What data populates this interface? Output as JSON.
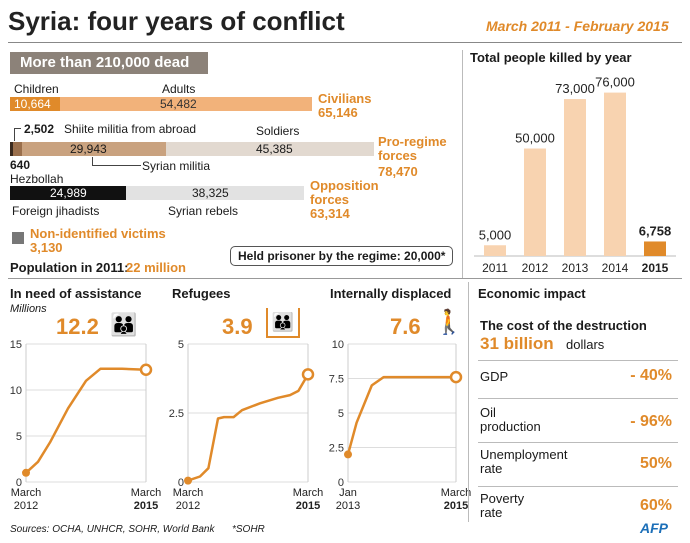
{
  "header": {
    "title": "Syria: four years of conflict",
    "period": "March 2011 - February 2015",
    "dead_banner": "More than 210,000 dead"
  },
  "civilians": {
    "children_label": "Children",
    "children_value": "10,664",
    "adults_label": "Adults",
    "adults_value": "54,482",
    "group_label": "Civilians",
    "group_total": "65,146"
  },
  "proregime": {
    "shiite_value": "2,502",
    "shiite_label": "Shiite militia from abroad",
    "soldiers_label": "Soldiers",
    "hezbollah_value": "640",
    "hezbollah_label": "Hezbollah",
    "militia_value": "29,943",
    "militia_label": "Syrian militia",
    "soldiers_value": "45,385",
    "group_label_1": "Pro-regime",
    "group_label_2": "forces",
    "group_total": "78,470"
  },
  "opposition": {
    "jihadists_value": "24,989",
    "jihadists_label": "Foreign jihadists",
    "rebels_value": "38,325",
    "rebels_label": "Syrian rebels",
    "group_label_1": "Opposition",
    "group_label_2": "forces",
    "group_total": "63,314"
  },
  "unidentified": {
    "label": "Non-identified victims",
    "value": "3,130"
  },
  "population": {
    "label": "Population in 2011:",
    "value": "22 million"
  },
  "prisoners": {
    "text": "Held prisoner by the regime: 20,000*"
  },
  "chart_data": [
    {
      "type": "bar",
      "title": "Total people killed by year",
      "categories": [
        "2011",
        "2012",
        "2013",
        "2014",
        "2015"
      ],
      "values": [
        5000,
        50000,
        73000,
        76000,
        6758
      ],
      "value_labels": [
        "5,000",
        "50,000",
        "73,000",
        "76,000",
        "6,758"
      ],
      "ylim": [
        0,
        80000
      ]
    },
    {
      "type": "line",
      "title": "In need of assistance",
      "unit_label": "Millions",
      "headline": "12.2",
      "ylim": [
        0,
        15
      ],
      "yticks": [
        "0",
        "5",
        "10",
        "15"
      ],
      "x_start_label": [
        "March",
        "2012"
      ],
      "x_end_label": [
        "March",
        "2015"
      ],
      "x": [
        0,
        0.1,
        0.2,
        0.35,
        0.5,
        0.62,
        0.8,
        1.0
      ],
      "values": [
        1.0,
        2.2,
        4.3,
        8.0,
        11.0,
        12.3,
        12.3,
        12.2
      ]
    },
    {
      "type": "line",
      "title": "Refugees",
      "headline": "3.9",
      "ylim": [
        0,
        5
      ],
      "yticks": [
        "0",
        "2.5",
        "5"
      ],
      "x_start_label": [
        "March",
        "2012"
      ],
      "x_end_label": [
        "March",
        "2015"
      ],
      "x": [
        0,
        0.1,
        0.17,
        0.25,
        0.3,
        0.38,
        0.45,
        0.6,
        0.75,
        0.85,
        0.92,
        1.0
      ],
      "values": [
        0.05,
        0.2,
        0.5,
        2.3,
        2.35,
        2.35,
        2.6,
        2.85,
        3.05,
        3.15,
        3.3,
        3.9
      ]
    },
    {
      "type": "line",
      "title": "Internally displaced",
      "headline": "7.6",
      "ylim": [
        0,
        10
      ],
      "yticks": [
        "0",
        "2.5",
        "5",
        "7.5",
        "10"
      ],
      "x_start_label": [
        "Jan",
        "2013"
      ],
      "x_end_label": [
        "March",
        "2015"
      ],
      "x": [
        0,
        0.08,
        0.22,
        0.33,
        0.6,
        1.0
      ],
      "values": [
        2.0,
        4.3,
        7.0,
        7.6,
        7.6,
        7.6
      ]
    }
  ],
  "economic": {
    "title": "Economic impact",
    "cost_label": "The cost of the destruction",
    "cost_value": "31 billion",
    "cost_unit": "dollars",
    "rows": [
      {
        "label_1": "GDP",
        "label_2": "",
        "value": "- 40%"
      },
      {
        "label_1": "Oil",
        "label_2": "production",
        "value": "- 96%"
      },
      {
        "label_1": "Unemployment",
        "label_2": "rate",
        "value": "50%"
      },
      {
        "label_1": "Poverty",
        "label_2": "rate",
        "value": "60%"
      }
    ]
  },
  "footer": {
    "sources": "Sources: OCHA, UNHCR, SOHR, World Bank",
    "note": "*SOHR",
    "logo": "AFP"
  },
  "colors": {
    "orange": "#e08a2a",
    "light_orange": "#f2b27a",
    "pale_orange": "#f8d3b0",
    "tan": "#c9a27f",
    "light_gray": "#ddd",
    "dark_gray": "#777",
    "black": "#111"
  }
}
